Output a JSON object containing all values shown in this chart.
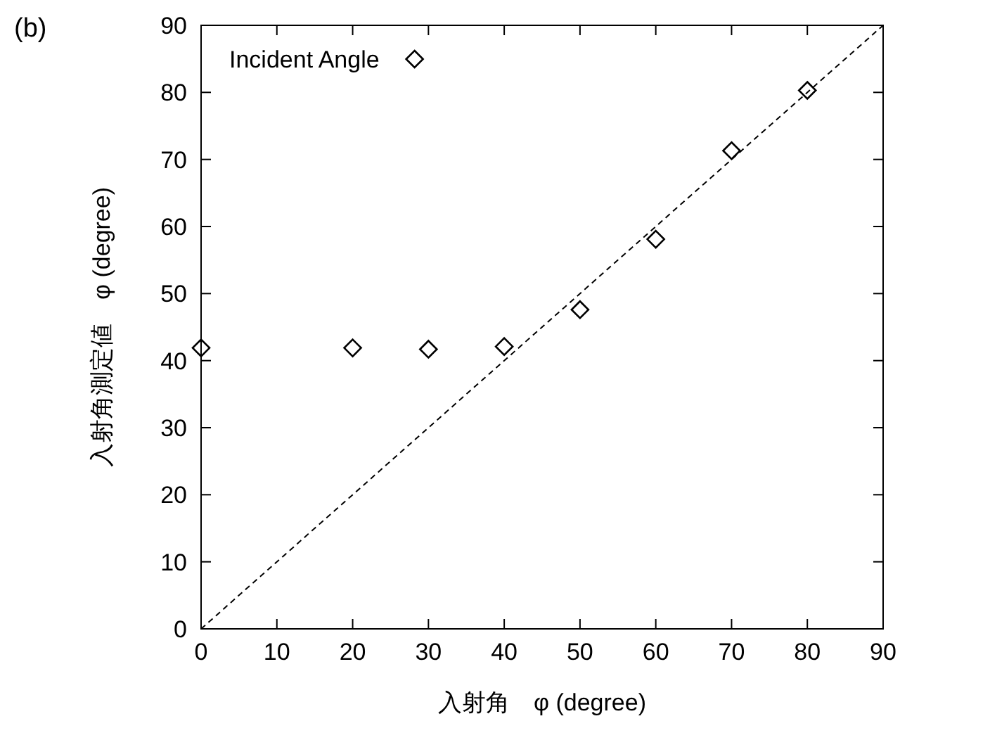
{
  "chart_data": {
    "type": "scatter",
    "xlabel": "入射角　φ (degree)",
    "ylabel": "入射角測定値　φ (degree)",
    "annotations": [
      "(b)"
    ],
    "xlim": [
      0,
      90
    ],
    "ylim": [
      0,
      90
    ],
    "xticks": [
      0,
      10,
      20,
      30,
      40,
      50,
      60,
      70,
      80,
      90
    ],
    "yticks": [
      0,
      10,
      20,
      30,
      40,
      50,
      60,
      70,
      80,
      90
    ],
    "legend": "top left",
    "grid": false,
    "series": [
      {
        "name": "Incident Angle",
        "marker": "diamond",
        "color": "#000000",
        "x": [
          0,
          20,
          30,
          40,
          50,
          60,
          70,
          80
        ],
        "values": [
          41.9,
          41.9,
          41.7,
          42.1,
          47.6,
          58.1,
          71.3,
          80.3
        ]
      },
      {
        "type": "line",
        "line_style": "dashed",
        "color": "#000000",
        "x": [
          0,
          90
        ],
        "values": [
          0,
          90
        ]
      }
    ]
  }
}
